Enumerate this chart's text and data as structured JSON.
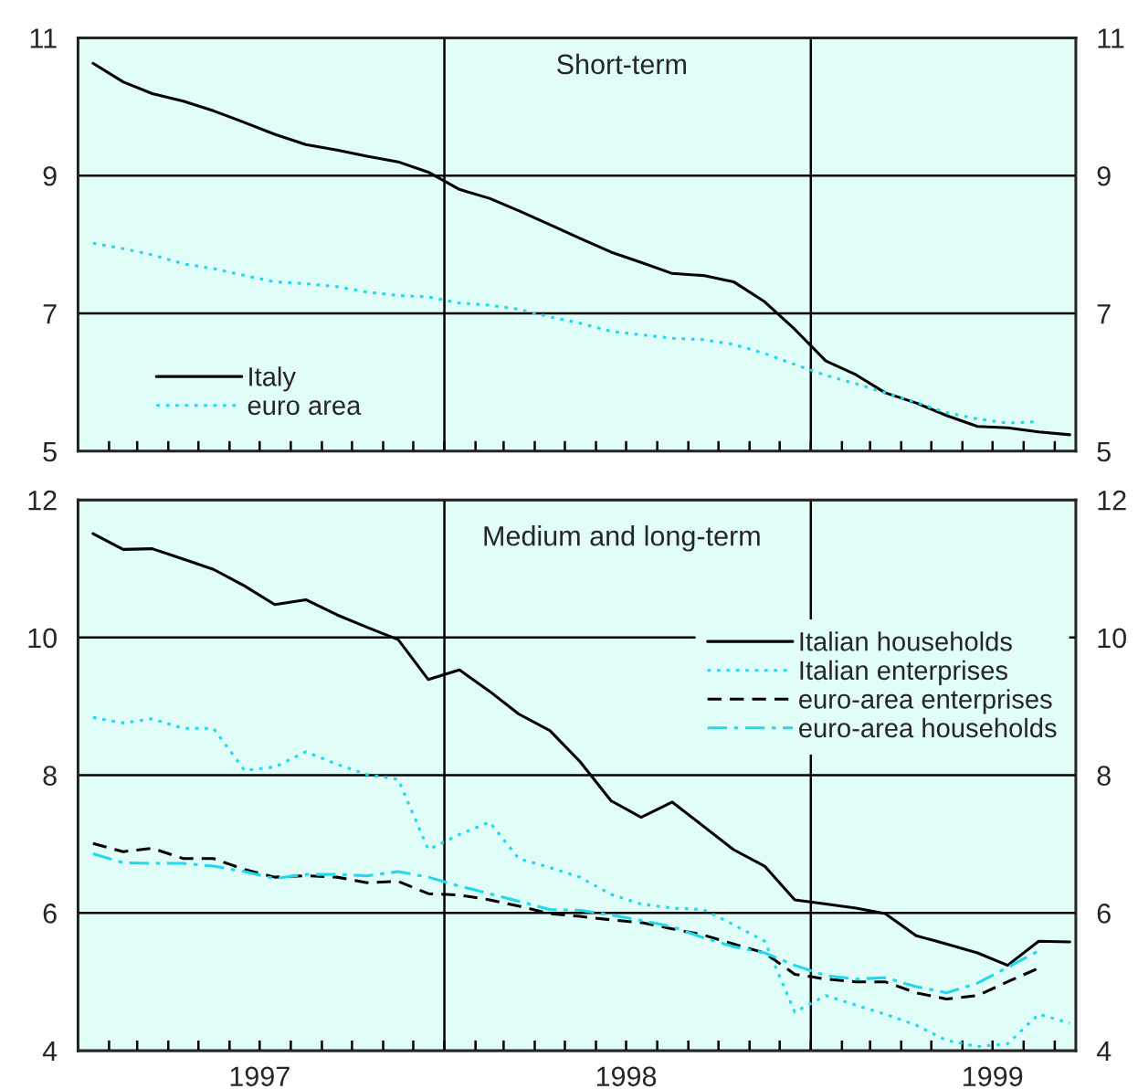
{
  "chart_data": [
    {
      "type": "line",
      "title": "Short-term",
      "x": [
        "1997-01-16",
        "1997-02-15",
        "1997-03-16",
        "1997-04-16",
        "1997-05-16",
        "1997-06-16",
        "1997-07-16",
        "1997-08-16",
        "1997-09-16",
        "1997-10-16",
        "1997-11-16",
        "1997-12-16",
        "1998-01-16",
        "1998-02-15",
        "1998-03-16",
        "1998-04-16",
        "1998-05-16",
        "1998-06-16",
        "1998-07-16",
        "1998-08-16",
        "1998-09-16",
        "1998-10-16",
        "1998-11-16",
        "1998-12-16",
        "1999-01-16",
        "1999-02-15",
        "1999-03-16",
        "1999-04-16",
        "1999-05-16",
        "1999-06-16",
        "1999-07-16",
        "1999-08-16",
        "1999-09-16"
      ],
      "series": [
        {
          "name": "Italy",
          "color": "#000000",
          "line_style": "solid",
          "values": [
            10.63,
            10.36,
            10.19,
            10.08,
            9.94,
            9.77,
            9.6,
            9.45,
            9.37,
            9.28,
            9.2,
            9.05,
            8.8,
            8.67,
            8.49,
            8.29,
            8.09,
            7.89,
            7.74,
            7.58,
            7.55,
            7.46,
            7.17,
            6.77,
            6.31,
            6.11,
            5.85,
            5.7,
            5.52,
            5.36,
            5.34,
            5.28,
            5.24
          ]
        },
        {
          "name": "euro area",
          "color": "#22d8ec",
          "line_style": "dotted",
          "values": [
            8.02,
            7.94,
            7.85,
            7.72,
            7.65,
            7.55,
            7.46,
            7.43,
            7.39,
            7.31,
            7.26,
            7.24,
            7.15,
            7.12,
            7.06,
            6.95,
            6.86,
            6.74,
            6.69,
            6.64,
            6.62,
            6.55,
            6.42,
            6.26,
            6.1,
            5.98,
            5.85,
            5.71,
            5.56,
            5.47,
            5.41,
            5.43,
            null
          ]
        }
      ],
      "xlim": [
        "1997-01-01",
        "1999-09-22"
      ],
      "xticks": [
        {
          "value": "1997-02-01",
          "label": null
        },
        {
          "value": "1997-03-01",
          "label": null
        },
        {
          "value": "1997-04-01",
          "label": null
        },
        {
          "value": "1997-05-01",
          "label": null
        },
        {
          "value": "1997-06-01",
          "label": null
        },
        {
          "value": "1997-07-01",
          "label": null
        },
        {
          "value": "1997-08-01",
          "label": null
        },
        {
          "value": "1997-09-01",
          "label": null
        },
        {
          "value": "1997-10-01",
          "label": null
        },
        {
          "value": "1997-11-01",
          "label": null
        },
        {
          "value": "1997-12-01",
          "label": null
        },
        {
          "value": "1998-01-01",
          "label": null
        },
        {
          "value": "1998-02-01",
          "label": null
        },
        {
          "value": "1998-03-01",
          "label": null
        },
        {
          "value": "1998-04-01",
          "label": null
        },
        {
          "value": "1998-05-01",
          "label": null
        },
        {
          "value": "1998-06-01",
          "label": null
        },
        {
          "value": "1998-07-01",
          "label": null
        },
        {
          "value": "1998-08-01",
          "label": null
        },
        {
          "value": "1998-09-01",
          "label": null
        },
        {
          "value": "1998-10-01",
          "label": null
        },
        {
          "value": "1998-11-01",
          "label": null
        },
        {
          "value": "1998-12-01",
          "label": null
        },
        {
          "value": "1999-01-01",
          "label": null
        },
        {
          "value": "1999-02-01",
          "label": null
        },
        {
          "value": "1999-03-01",
          "label": null
        },
        {
          "value": "1999-04-01",
          "label": null
        },
        {
          "value": "1999-05-01",
          "label": null
        },
        {
          "value": "1999-06-01",
          "label": null
        },
        {
          "value": "1999-07-01",
          "label": null
        },
        {
          "value": "1999-08-01",
          "label": null
        },
        {
          "value": "1999-09-01",
          "label": null
        }
      ],
      "ylim": [
        5,
        11
      ],
      "yticks": [
        5,
        7,
        9,
        11
      ],
      "y2lim": [
        5,
        11
      ],
      "y2ticks": [
        5,
        7,
        9,
        11
      ],
      "tick_labels": "y",
      "grid": "y",
      "legend": "bottom left",
      "marker": "none",
      "ref_lines": [
        {
          "axis": "x",
          "value": "1998-01-01",
          "color": "#000000"
        },
        {
          "axis": "x",
          "value": "1999-01-01",
          "color": "#000000"
        }
      ]
    },
    {
      "type": "line",
      "title": "Medium and long-term",
      "x": [
        "1997-01-16",
        "1997-02-15",
        "1997-03-16",
        "1997-04-16",
        "1997-05-16",
        "1997-06-16",
        "1997-07-16",
        "1997-08-16",
        "1997-09-16",
        "1997-10-16",
        "1997-11-16",
        "1997-12-16",
        "1998-01-16",
        "1998-02-15",
        "1998-03-16",
        "1998-04-16",
        "1998-05-16",
        "1998-06-16",
        "1998-07-16",
        "1998-08-16",
        "1998-09-16",
        "1998-10-16",
        "1998-11-16",
        "1998-12-16",
        "1999-01-16",
        "1999-02-15",
        "1999-03-16",
        "1999-04-16",
        "1999-05-16",
        "1999-06-16",
        "1999-07-16",
        "1999-08-16",
        "1999-09-16"
      ],
      "series": [
        {
          "name": "Italian households",
          "color": "#000000",
          "line_style": "solid",
          "values": [
            11.51,
            11.28,
            11.29,
            11.14,
            10.99,
            10.75,
            10.48,
            10.55,
            10.33,
            10.15,
            9.97,
            9.39,
            9.53,
            9.22,
            8.89,
            8.65,
            8.2,
            7.63,
            7.39,
            7.61,
            7.26,
            6.92,
            6.68,
            6.19,
            6.13,
            6.07,
            5.99,
            5.67,
            5.55,
            5.42,
            5.24,
            5.59,
            5.58
          ]
        },
        {
          "name": "Italian enterprises",
          "color": "#22d8ec",
          "line_style": "dotted",
          "values": [
            8.84,
            8.76,
            8.82,
            8.68,
            8.68,
            8.07,
            8.12,
            8.34,
            8.16,
            8.01,
            7.94,
            6.92,
            7.14,
            7.32,
            6.79,
            6.66,
            6.52,
            6.27,
            6.13,
            6.07,
            6.05,
            5.83,
            5.59,
            4.56,
            4.8,
            4.66,
            4.53,
            4.37,
            4.15,
            4.06,
            4.1,
            4.53,
            4.4
          ]
        },
        {
          "name": "euro-area enterprises",
          "color": "#000000",
          "line_style": "dashed",
          "values": [
            7.01,
            6.89,
            6.94,
            6.79,
            6.79,
            6.63,
            6.52,
            6.54,
            6.52,
            6.44,
            6.46,
            6.28,
            6.26,
            6.19,
            6.1,
            5.99,
            5.95,
            5.9,
            5.86,
            5.77,
            5.68,
            5.55,
            5.42,
            5.11,
            5.04,
            5.0,
            5.0,
            4.84,
            4.75,
            4.8,
            5.0,
            5.2,
            null
          ]
        },
        {
          "name": "euro-area households",
          "color": "#22d8ec",
          "line_style": "dashdot",
          "values": [
            6.86,
            6.73,
            6.72,
            6.72,
            6.68,
            6.6,
            6.5,
            6.56,
            6.56,
            6.54,
            6.6,
            6.52,
            6.39,
            6.28,
            6.17,
            6.05,
            6.04,
            5.97,
            5.89,
            5.8,
            5.64,
            5.51,
            5.42,
            5.24,
            5.09,
            5.04,
            5.06,
            4.93,
            4.84,
            4.98,
            5.21,
            5.45,
            null
          ]
        }
      ],
      "xlim": [
        "1997-01-01",
        "1999-09-22"
      ],
      "xticks": [
        {
          "value": "1997-02-01",
          "label": null
        },
        {
          "value": "1997-03-01",
          "label": null
        },
        {
          "value": "1997-04-01",
          "label": null
        },
        {
          "value": "1997-05-01",
          "label": null
        },
        {
          "value": "1997-06-01",
          "label": null
        },
        {
          "value": "1997-07-01",
          "label": "1997"
        },
        {
          "value": "1997-08-01",
          "label": null
        },
        {
          "value": "1997-09-01",
          "label": null
        },
        {
          "value": "1997-10-01",
          "label": null
        },
        {
          "value": "1997-11-01",
          "label": null
        },
        {
          "value": "1997-12-01",
          "label": null
        },
        {
          "value": "1998-01-01",
          "label": null
        },
        {
          "value": "1998-02-01",
          "label": null
        },
        {
          "value": "1998-03-01",
          "label": null
        },
        {
          "value": "1998-04-01",
          "label": null
        },
        {
          "value": "1998-05-01",
          "label": null
        },
        {
          "value": "1998-06-01",
          "label": null
        },
        {
          "value": "1998-07-01",
          "label": "1998"
        },
        {
          "value": "1998-08-01",
          "label": null
        },
        {
          "value": "1998-09-01",
          "label": null
        },
        {
          "value": "1998-10-01",
          "label": null
        },
        {
          "value": "1998-11-01",
          "label": null
        },
        {
          "value": "1998-12-01",
          "label": null
        },
        {
          "value": "1999-01-01",
          "label": null
        },
        {
          "value": "1999-02-01",
          "label": null
        },
        {
          "value": "1999-03-01",
          "label": null
        },
        {
          "value": "1999-04-01",
          "label": null
        },
        {
          "value": "1999-05-01",
          "label": null
        },
        {
          "value": "1999-06-01",
          "label": null
        },
        {
          "value": "1999-07-01",
          "label": "1999"
        },
        {
          "value": "1999-08-01",
          "label": null
        },
        {
          "value": "1999-09-01",
          "label": null
        }
      ],
      "ylim": [
        4,
        12
      ],
      "yticks": [
        4,
        6,
        8,
        10,
        12
      ],
      "y2lim": [
        4,
        12
      ],
      "y2ticks": [
        4,
        6,
        8,
        10,
        12
      ],
      "grid": "y",
      "legend": "right",
      "marker": "none",
      "ref_lines": [
        {
          "axis": "x",
          "value": "1998-01-01",
          "color": "#000000"
        },
        {
          "axis": "x",
          "value": "1999-01-01",
          "color": "#000000"
        }
      ]
    }
  ]
}
